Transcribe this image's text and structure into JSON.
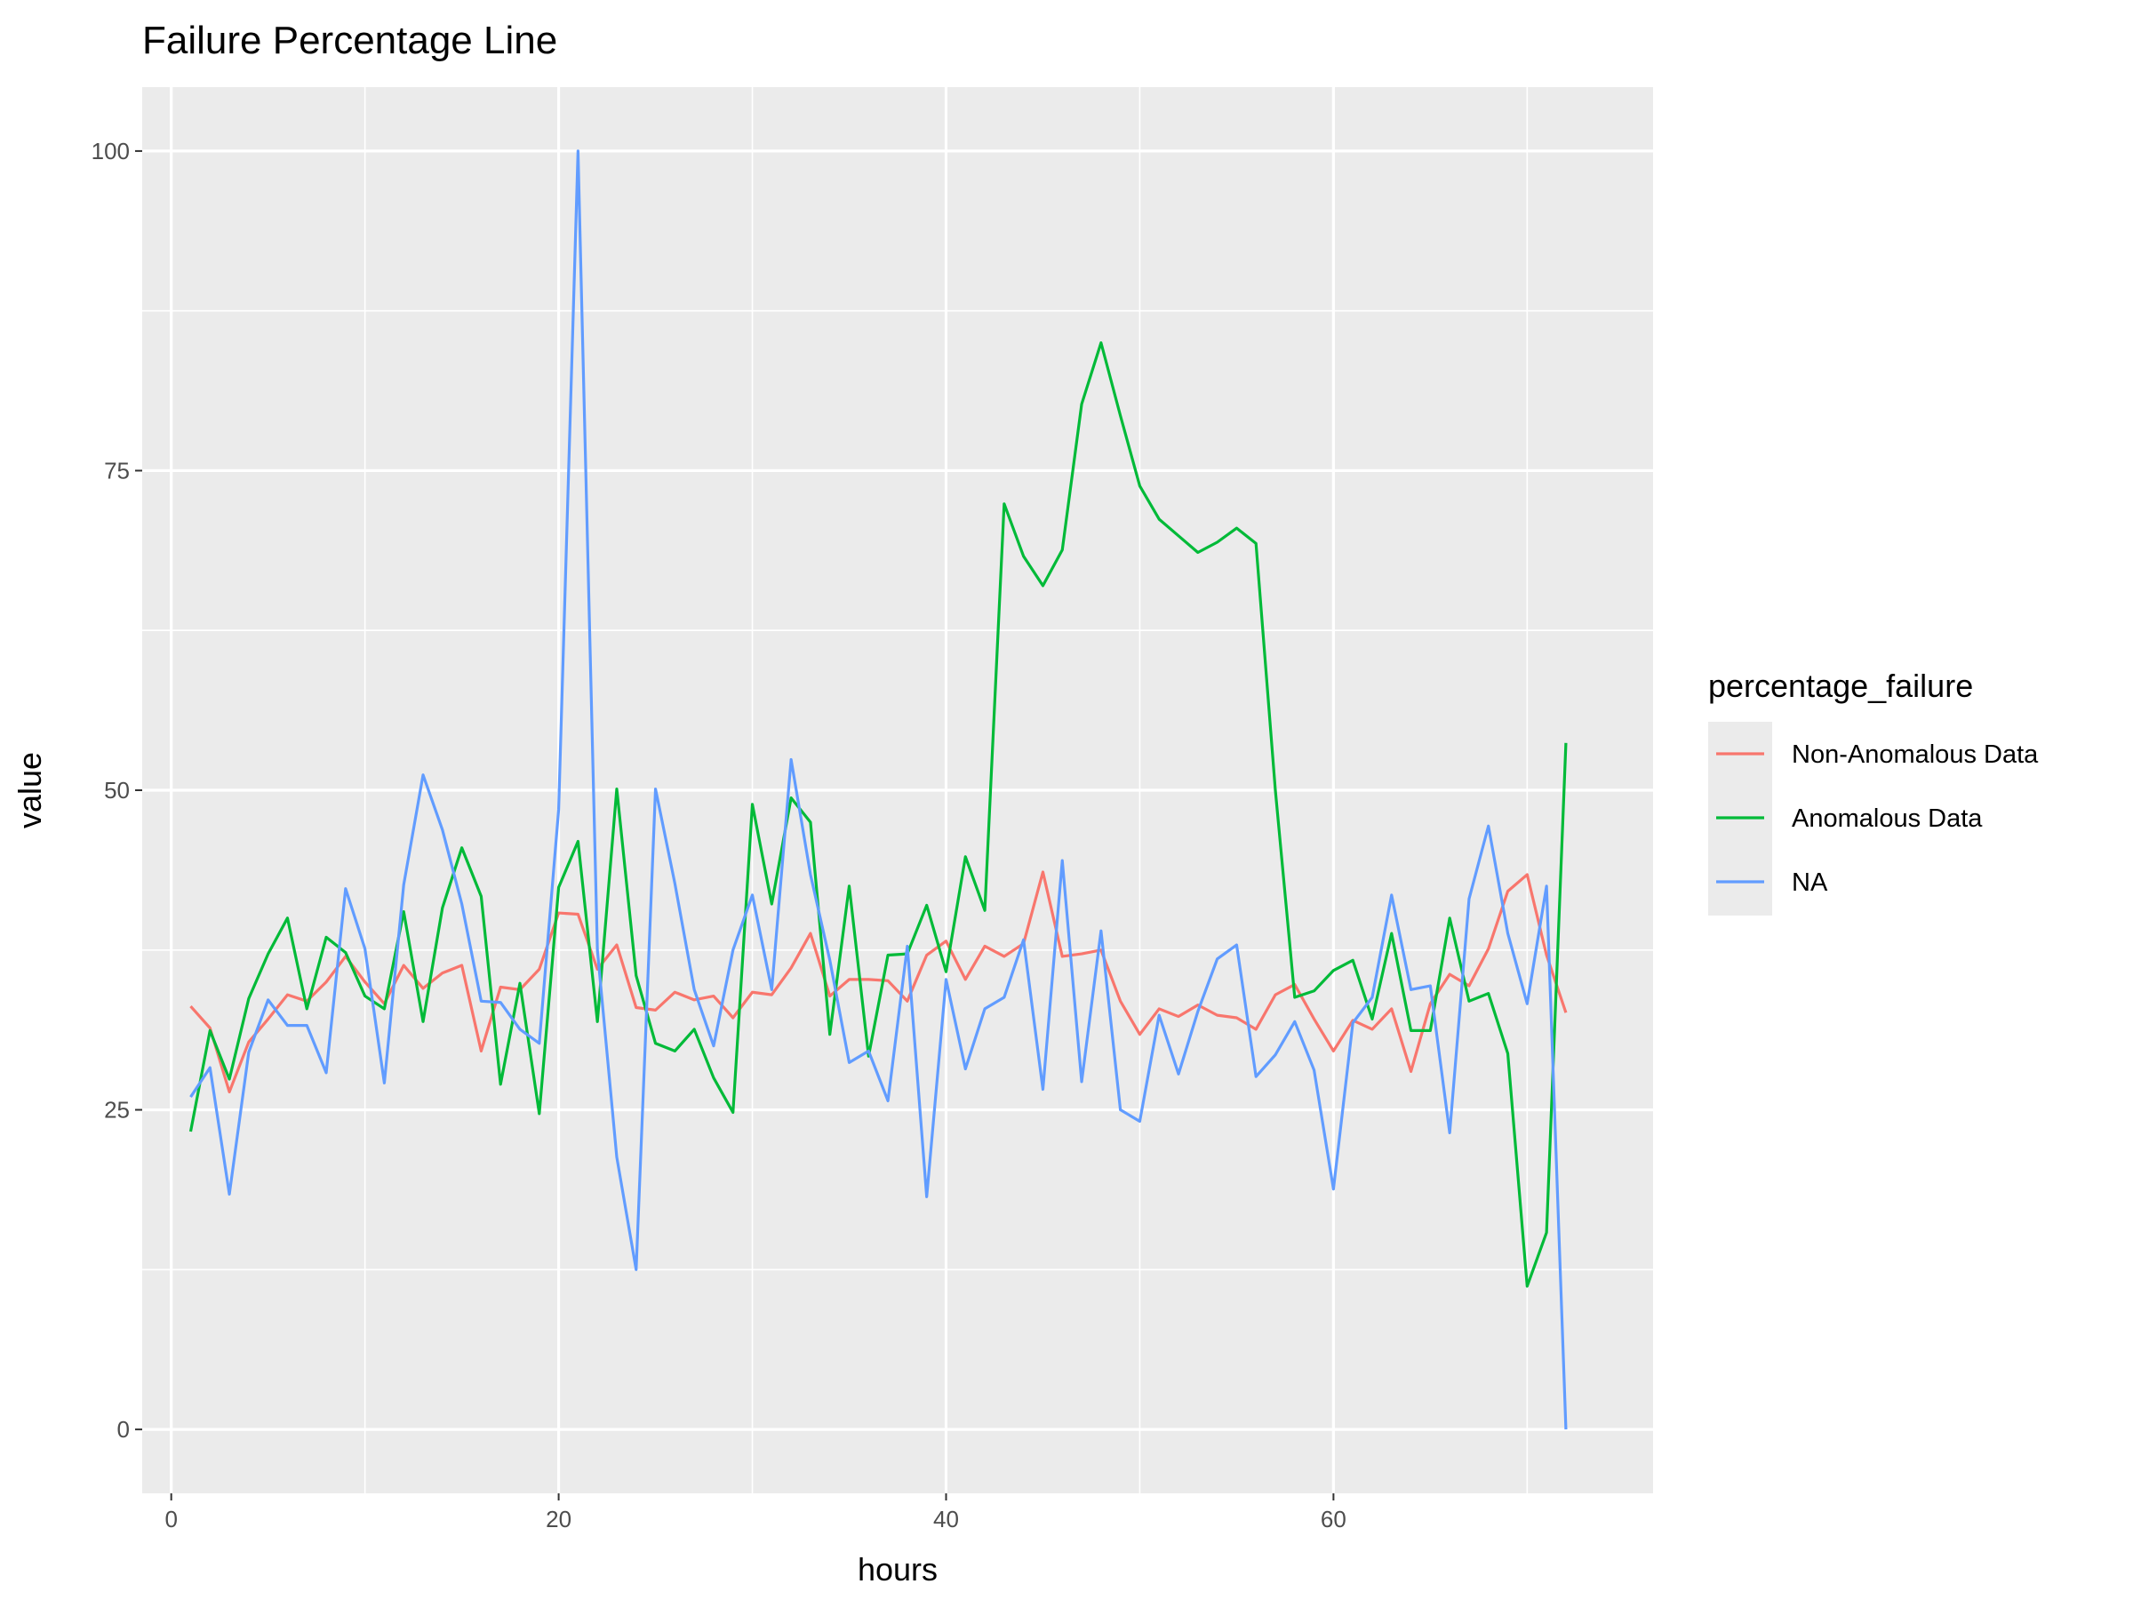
{
  "chart_data": {
    "type": "line",
    "title": "Failure Percentage Line",
    "xlabel": "hours",
    "ylabel": "value",
    "xlim": [
      -1.5,
      76.5
    ],
    "ylim": [
      -5,
      105
    ],
    "x_ticks": [
      0,
      20,
      40,
      60
    ],
    "y_ticks": [
      0,
      25,
      50,
      75,
      100
    ],
    "grid": true,
    "legend_title": "percentage_failure",
    "legend_position": "right",
    "x": [
      1,
      2,
      3,
      4,
      5,
      6,
      7,
      8,
      9,
      10,
      11,
      12,
      13,
      14,
      15,
      16,
      17,
      18,
      19,
      20,
      21,
      22,
      23,
      24,
      25,
      26,
      27,
      28,
      29,
      30,
      31,
      32,
      33,
      34,
      35,
      36,
      37,
      38,
      39,
      40,
      41,
      42,
      43,
      44,
      45,
      46,
      47,
      48,
      49,
      50,
      51,
      52,
      53,
      54,
      55,
      56,
      57,
      58,
      59,
      60,
      61,
      62,
      63,
      64,
      65,
      66,
      67,
      68,
      69,
      70,
      71,
      72
    ],
    "series": [
      {
        "name": "Non-Anomalous Data",
        "color": "#f8766d",
        "values": [
          33.1,
          31.4,
          26.4,
          30.3,
          32.1,
          34.0,
          33.5,
          35.0,
          37.0,
          35.0,
          33.3,
          36.3,
          34.5,
          35.7,
          36.3,
          29.6,
          34.6,
          34.4,
          36.0,
          40.4,
          40.3,
          36.0,
          37.9,
          33.0,
          32.8,
          34.2,
          33.6,
          33.9,
          32.2,
          34.2,
          34.0,
          36.1,
          38.8,
          33.9,
          35.2,
          35.2,
          35.1,
          33.5,
          37.1,
          38.2,
          35.2,
          37.8,
          37.0,
          38.0,
          43.6,
          37.0,
          37.2,
          37.5,
          33.5,
          30.9,
          32.9,
          32.3,
          33.2,
          32.4,
          32.2,
          31.3,
          34.0,
          34.8,
          32.1,
          29.6,
          32.0,
          31.3,
          32.9,
          28.0,
          33.3,
          35.6,
          34.7,
          37.6,
          42.1,
          43.4,
          37.1,
          32.6
        ]
      },
      {
        "name": "Anomalous Data",
        "color": "#00ba38",
        "values": [
          23.3,
          31.2,
          27.4,
          33.7,
          37.2,
          40.0,
          32.9,
          38.5,
          37.3,
          33.9,
          32.9,
          40.5,
          31.9,
          40.8,
          45.5,
          41.7,
          27.0,
          34.9,
          24.7,
          42.4,
          46.0,
          31.9,
          50.1,
          35.5,
          30.2,
          29.6,
          31.3,
          27.5,
          24.8,
          48.9,
          41.1,
          49.4,
          47.5,
          30.9,
          42.5,
          29.2,
          37.1,
          37.2,
          41.0,
          35.8,
          44.8,
          40.6,
          72.4,
          68.3,
          66.0,
          68.8,
          80.2,
          85.0,
          79.3,
          73.8,
          71.2,
          69.9,
          68.6,
          69.4,
          70.5,
          69.3,
          50.0,
          33.8,
          34.3,
          35.9,
          36.7,
          32.1,
          38.8,
          31.2,
          31.2,
          40.0,
          33.5,
          34.1,
          29.4,
          11.2,
          15.4,
          53.7
        ]
      },
      {
        "name": "NA",
        "color": "#619cff",
        "values": [
          26.0,
          28.3,
          18.4,
          29.5,
          33.6,
          31.6,
          31.6,
          27.9,
          42.3,
          37.6,
          27.1,
          42.6,
          51.2,
          46.9,
          41.1,
          33.5,
          33.4,
          31.3,
          30.2,
          48.5,
          100.0,
          37.5,
          21.3,
          12.5,
          50.1,
          42.7,
          34.4,
          30.0,
          37.5,
          41.8,
          34.4,
          52.4,
          43.4,
          36.7,
          28.7,
          29.6,
          25.7,
          37.8,
          18.2,
          35.2,
          28.2,
          32.9,
          33.8,
          38.3,
          26.6,
          44.5,
          27.2,
          39.0,
          25.0,
          24.1,
          32.4,
          27.8,
          32.7,
          36.8,
          37.9,
          27.6,
          29.3,
          31.9,
          28.1,
          18.8,
          31.8,
          33.8,
          41.8,
          34.4,
          34.7,
          23.2,
          41.5,
          47.2,
          38.8,
          33.3,
          42.5,
          0.0
        ]
      }
    ]
  }
}
